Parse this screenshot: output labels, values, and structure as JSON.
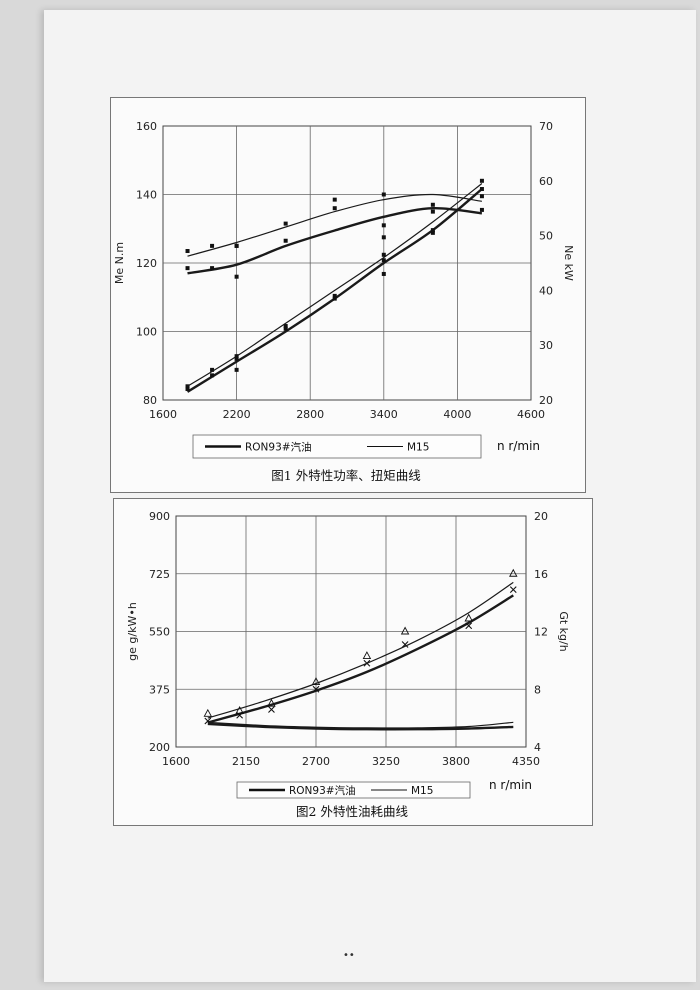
{
  "page_mark": "••",
  "chart_data": [
    {
      "type": "line",
      "caption": "图1  外特性功率、扭矩曲线",
      "x_unit_label": "n  r/min",
      "x_ticks": [
        1600,
        2200,
        2800,
        3400,
        4000,
        4600
      ],
      "xlim": [
        1600,
        4600
      ],
      "left_axis": {
        "label": "Me  N.m",
        "ticks": [
          80,
          100,
          120,
          140,
          160
        ],
        "ylim": [
          80,
          160
        ]
      },
      "right_axis": {
        "label": "Ne  kW",
        "ticks": [
          20,
          30,
          40,
          50,
          60,
          70
        ],
        "ylim": [
          20,
          70
        ]
      },
      "legend": [
        {
          "name": "RON93#汽油",
          "style": "thick"
        },
        {
          "name": "M15",
          "style": "thin"
        }
      ],
      "grid": true,
      "series": [
        {
          "name": "RON93#汽油",
          "quantity": "Me",
          "axis": "left",
          "style": "thick",
          "curve": {
            "x": [
              1800,
              2200,
              2600,
              3000,
              3400,
              3800,
              4200
            ],
            "y": [
              117,
              119.5,
              125,
              129.5,
              133.5,
              136,
              134.5
            ]
          },
          "points": {
            "x": [
              1800,
              2000,
              2200,
              2200,
              2600,
              3000,
              3400,
              3400,
              3800,
              4200
            ],
            "y": [
              118.5,
              118.5,
              125,
              116,
              126.5,
              138.5,
              131,
              127.5,
              135,
              135.5
            ]
          }
        },
        {
          "name": "M15",
          "quantity": "Me",
          "axis": "left",
          "style": "thin",
          "curve": {
            "x": [
              1800,
              2200,
              2600,
              3000,
              3400,
              3800,
              4200
            ],
            "y": [
              122,
              126,
              130.5,
              135,
              138.5,
              140,
              138
            ]
          },
          "points": {
            "x": [
              1800,
              2000,
              2200,
              2600,
              3000,
              3400,
              3800,
              4200
            ],
            "y": [
              123.5,
              125,
              125,
              131.5,
              136,
              140,
              137,
              139.5
            ]
          }
        },
        {
          "name": "RON93#汽油",
          "quantity": "Ne",
          "axis": "right",
          "style": "thick",
          "curve": {
            "x": [
              1800,
              2200,
              2600,
              3000,
              3400,
              3800,
              4200
            ],
            "y": [
              21.5,
              27,
              32.5,
              38.5,
              45,
              51,
              58.5
            ]
          },
          "points": {
            "x": [
              1800,
              2000,
              2200,
              2200,
              2600,
              3000,
              3400,
              3400,
              3800,
              4200
            ],
            "y": [
              22.5,
              25.5,
              27.5,
              25.5,
              33,
              38.5,
              45.5,
              43,
              50.5,
              58.5
            ]
          }
        },
        {
          "name": "M15",
          "quantity": "Ne",
          "axis": "right",
          "style": "thin",
          "curve": {
            "x": [
              1800,
              2200,
              2600,
              3000,
              3400,
              3800,
              4200
            ],
            "y": [
              22.5,
              28,
              34,
              40,
              46,
              52.5,
              59.5
            ]
          },
          "points": {
            "x": [
              1800,
              2000,
              2200,
              2600,
              3000,
              3400,
              3800,
              4200
            ],
            "y": [
              22,
              24.5,
              28,
              33.5,
              39,
              46.5,
              51,
              60
            ]
          }
        }
      ]
    },
    {
      "type": "line",
      "caption": "图2  外特性油耗曲线",
      "x_unit_label": "n  r/min",
      "x_ticks": [
        1600,
        2150,
        2700,
        3250,
        3800,
        4350
      ],
      "xlim": [
        1600,
        4350
      ],
      "left_axis": {
        "label": "ge  g/kW•h",
        "ticks": [
          200,
          375,
          550,
          725,
          900
        ],
        "ylim": [
          200,
          900
        ]
      },
      "right_axis": {
        "label": "Gt  kg/h",
        "ticks": [
          4,
          8,
          12,
          16,
          20
        ],
        "ylim": [
          4,
          20
        ]
      },
      "legend": [
        {
          "name": "RON93#汽油",
          "style": "thick"
        },
        {
          "name": "M15",
          "style": "thin"
        }
      ],
      "grid": true,
      "series": [
        {
          "name": "RON93#汽油",
          "quantity": "Gt",
          "axis": "right",
          "style": "thick",
          "marker": "x",
          "curve": {
            "x": [
              1850,
              2300,
              2700,
              3100,
              3500,
              3900,
              4250
            ],
            "y": [
              5.7,
              6.8,
              7.9,
              9.2,
              10.8,
              12.6,
              14.5
            ]
          },
          "points": {
            "x": [
              1850,
              2100,
              2350,
              2700,
              3100,
              3400,
              3900,
              4250
            ],
            "y": [
              5.8,
              6.2,
              6.6,
              8.0,
              9.8,
              11.1,
              12.4,
              14.9
            ]
          }
        },
        {
          "name": "M15",
          "quantity": "Gt",
          "axis": "right",
          "style": "thin",
          "marker": "triangle",
          "curve": {
            "x": [
              1850,
              2300,
              2700,
              3100,
              3500,
              3900,
              4250
            ],
            "y": [
              6.0,
              7.2,
              8.4,
              9.8,
              11.4,
              13.3,
              15.4
            ]
          },
          "points": {
            "x": [
              1850,
              2100,
              2350,
              2700,
              3100,
              3400,
              3900,
              4250
            ],
            "y": [
              6.3,
              6.5,
              7.0,
              8.5,
              10.3,
              12.0,
              12.9,
              16.0
            ]
          }
        },
        {
          "name": "RON93#汽油",
          "quantity": "ge",
          "axis": "left",
          "style": "thick",
          "curve": {
            "x": [
              1850,
              2300,
              2700,
              3100,
              3500,
              3900,
              4250
            ],
            "y": [
              270,
              261,
              256,
              254,
              254,
              256,
              261
            ]
          }
        },
        {
          "name": "M15",
          "quantity": "ge",
          "axis": "left",
          "style": "thin",
          "curve": {
            "x": [
              1850,
              2300,
              2700,
              3100,
              3500,
              3900,
              4250
            ],
            "y": [
              275,
              265,
              260,
              258,
              258,
              262,
              275
            ]
          }
        }
      ]
    }
  ]
}
